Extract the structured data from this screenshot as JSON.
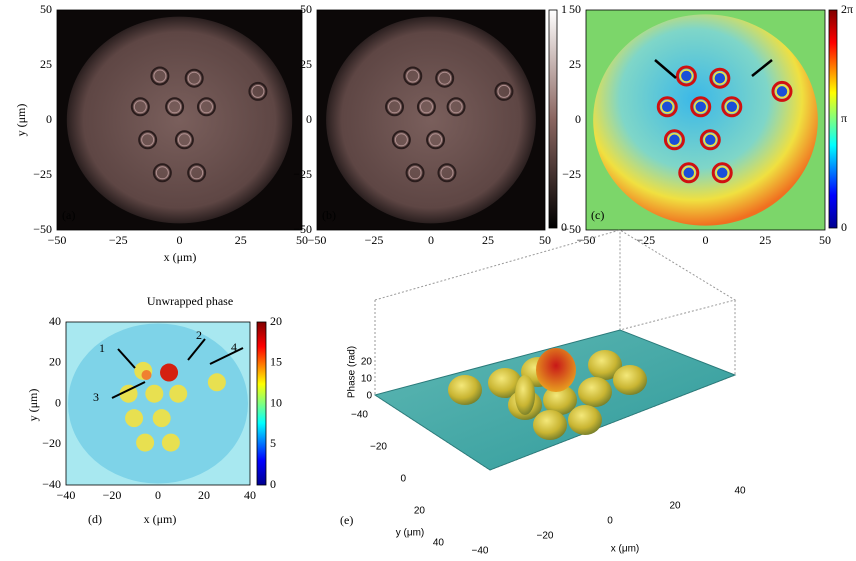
{
  "panels": [
    {
      "label": "(a)",
      "xticks": [
        "−50",
        "−25",
        "0",
        "25",
        "50"
      ],
      "yticks": [
        "50",
        "25",
        "0",
        "−25",
        "−50"
      ],
      "xlabel": "x (μm)",
      "ylabel": "y (μm)"
    },
    {
      "label": "(b)",
      "xticks": [
        "−50",
        "−25",
        "0",
        "25",
        "50"
      ],
      "yticks": [
        "50",
        "25",
        "0",
        "−25",
        "−50"
      ],
      "colorbar": [
        "1",
        "0"
      ]
    },
    {
      "label": "(c)",
      "xticks": [
        "−50",
        "−25",
        "0",
        "25",
        "50"
      ],
      "yticks": [
        "50",
        "25",
        "0",
        "−25",
        "−50"
      ],
      "colorbar": [
        "2π",
        "π",
        "0"
      ]
    },
    {
      "label": "(d)",
      "title": "Unwrapped phase",
      "xticks": [
        "−40",
        "−20",
        "0",
        "20",
        "40"
      ],
      "yticks": [
        "40",
        "20",
        "0",
        "−20",
        "−40"
      ],
      "xlabel": "x (μm)",
      "ylabel": "y (μm)",
      "colorbar": [
        "20",
        "15",
        "10",
        "5",
        "0"
      ],
      "annotations": [
        "1",
        "2",
        "3",
        "4"
      ]
    },
    {
      "label": "(e)",
      "zlabel": "Phase (rad)",
      "zticks": [
        "20",
        "10",
        "0"
      ],
      "yticks": [
        "−40",
        "−20",
        "0",
        "20",
        "40"
      ],
      "xticks": [
        "−40",
        "−20",
        "0",
        "20",
        "40"
      ],
      "xlabel": "x (μm)",
      "ylabel": "y (μm)"
    }
  ]
}
